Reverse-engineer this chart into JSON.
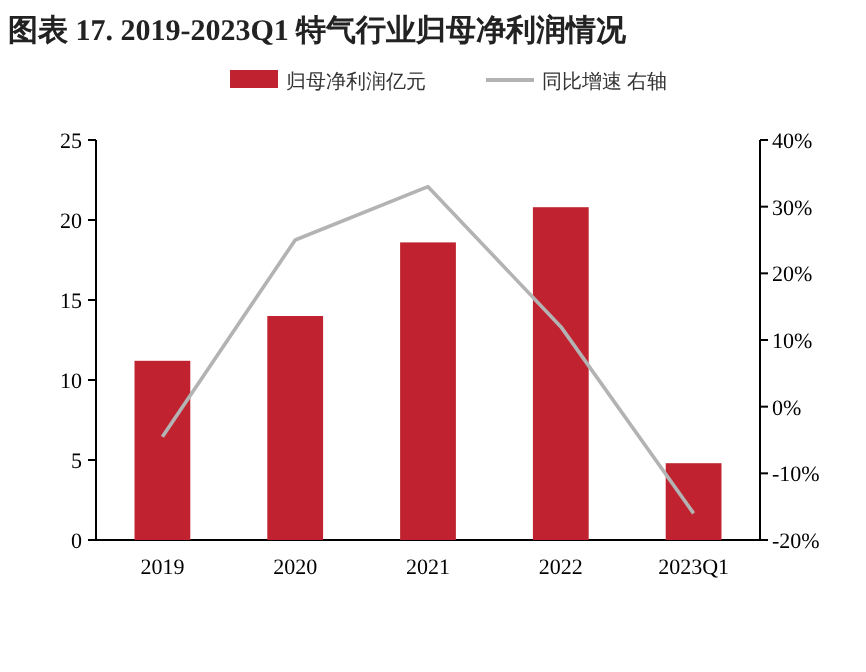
{
  "chart_data": {
    "type": "bar",
    "title": "图表 17. 2019-2023Q1 特气行业归母净利润情况",
    "categories": [
      "2019",
      "2020",
      "2021",
      "2022",
      "2023Q1"
    ],
    "series": [
      {
        "name": "归母净利润亿元",
        "color": "#c0232f",
        "values": [
          11.2,
          14.0,
          18.6,
          20.8,
          4.8
        ]
      },
      {
        "name": "同比增速 右轴",
        "type": "line",
        "axis": "y2",
        "color": "#b3b3b3",
        "values": [
          -4.5,
          25,
          33,
          12,
          -16
        ]
      }
    ],
    "ylim": [
      0,
      25
    ],
    "yticks": [
      0,
      5,
      10,
      15,
      20,
      25
    ],
    "y2lim": [
      -20,
      40
    ],
    "y2ticks": [
      {
        "value": -20,
        "label": "-20%"
      },
      {
        "value": -10,
        "label": "-10%"
      },
      {
        "value": 0,
        "label": "0%"
      },
      {
        "value": 10,
        "label": "10%"
      },
      {
        "value": 20,
        "label": "20%"
      },
      {
        "value": 30,
        "label": "30%"
      },
      {
        "value": 40,
        "label": "40%"
      }
    ],
    "legend": "top",
    "grid": false,
    "marker": "none"
  }
}
